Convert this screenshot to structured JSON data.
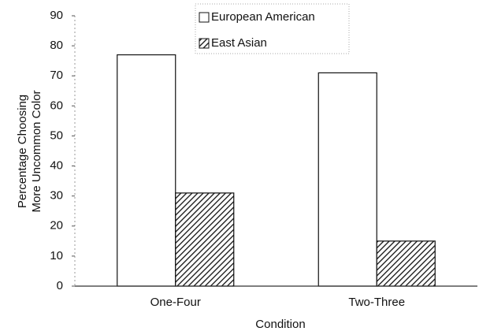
{
  "chart_data": {
    "type": "bar",
    "xlabel": "Condition",
    "ylabel": [
      "Percentage Choosing",
      "More Uncommon Color"
    ],
    "categories": [
      "One-Four",
      "Two-Three"
    ],
    "series": [
      {
        "name": "European American",
        "color": "#ffffff",
        "pattern": "none",
        "values": [
          77,
          71
        ]
      },
      {
        "name": "East Asian",
        "color": "#ffffff",
        "pattern": "diagonal-hatch",
        "values": [
          31,
          15
        ]
      }
    ],
    "ylim": [
      0,
      90
    ],
    "yticks": [
      0,
      10,
      20,
      30,
      40,
      50,
      60,
      70,
      80,
      90
    ],
    "grid": false,
    "legend": "top"
  }
}
